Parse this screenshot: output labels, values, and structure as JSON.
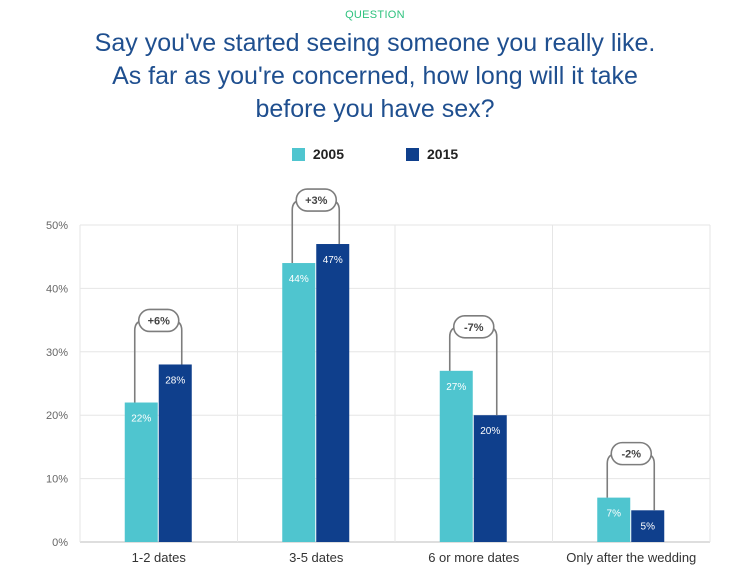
{
  "header": {
    "eyebrow": "QUESTION",
    "title_lines": [
      "Say you've started seeing someone you really like.",
      "As far as you're concerned, how long will it take",
      "before you have sex?"
    ]
  },
  "colors": {
    "s2005": "#4fc5cf",
    "s2015": "#0f3f8c",
    "bracket": "#7d7d7d",
    "grid": "#e6e6e6"
  },
  "chart_data": {
    "type": "bar",
    "categories": [
      "1-2 dates",
      "3-5 dates",
      "6 or more dates",
      "Only after the wedding"
    ],
    "series": [
      {
        "name": "2005",
        "values": [
          22,
          44,
          27,
          7
        ],
        "labels": [
          "22%",
          "44%",
          "27%",
          "7%"
        ]
      },
      {
        "name": "2015",
        "values": [
          28,
          47,
          20,
          5
        ],
        "labels": [
          "28%",
          "47%",
          "20%",
          "5%"
        ]
      }
    ],
    "changes": [
      "+6%",
      "+3%",
      "-7%",
      "-2%"
    ],
    "yticks": [
      "0%",
      "10%",
      "20%",
      "30%",
      "40%",
      "50%"
    ],
    "ylim": [
      0,
      50
    ],
    "grid": true,
    "legend_position": "top-center"
  }
}
